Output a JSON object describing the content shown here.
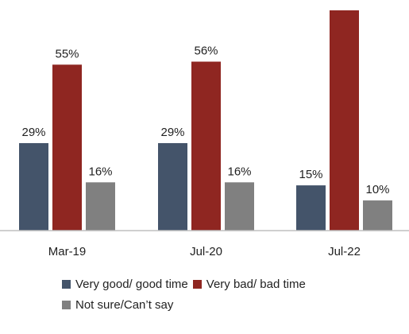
{
  "chart_data": {
    "type": "bar",
    "categories": [
      "Mar-19",
      "Jul-20",
      "Jul-22"
    ],
    "series": [
      {
        "name": "Very good/ good time",
        "color": "#44546a",
        "values": [
          29,
          29,
          15
        ],
        "labels": [
          "29%",
          "29%",
          "15%"
        ]
      },
      {
        "name": "Very bad/ bad time",
        "color": "#8f2621",
        "values": [
          55,
          56,
          73
        ],
        "labels": [
          "55%",
          "56%",
          ""
        ]
      },
      {
        "name": "Not sure/Can’t say",
        "color": "#808080",
        "values": [
          16,
          16,
          10
        ],
        "labels": [
          "16%",
          "16%",
          "10%"
        ]
      }
    ],
    "ylim": [
      0,
      73
    ],
    "legend_position": "bottom"
  }
}
